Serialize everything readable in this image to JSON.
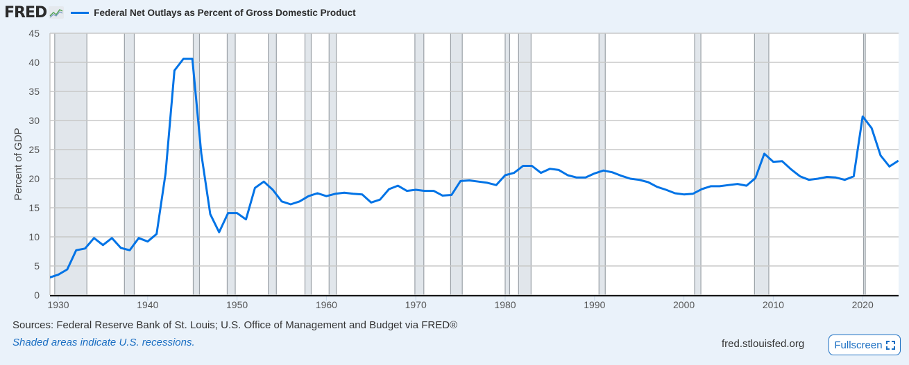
{
  "header": {
    "logo": "FRED",
    "legend_label": "Federal Net Outlays as Percent of Gross Domestic Product"
  },
  "footer": {
    "sources": "Sources: Federal Reserve Bank of St. Louis; U.S. Office of Management and Budget via FRED®",
    "note": "Shaded areas indicate U.S. recessions.",
    "site": "fred.stlouisfed.org",
    "fullscreen_label": "Fullscreen"
  },
  "colors": {
    "series": "#0073e6",
    "recession": "#e1e6eb",
    "background": "#eaf2fa"
  },
  "chart_data": {
    "type": "line",
    "title": "Federal Net Outlays as Percent of Gross Domestic Product",
    "xlabel": "",
    "ylabel": "Percent of GDP",
    "xlim": [
      1929,
      2024
    ],
    "ylim": [
      0,
      45
    ],
    "yticks": [
      "0",
      "5",
      "10",
      "15",
      "20",
      "25",
      "30",
      "35",
      "40",
      "45"
    ],
    "xticks": [
      "1930",
      "1940",
      "1950",
      "1960",
      "1970",
      "1980",
      "1990",
      "2000",
      "2010",
      "2020"
    ],
    "grid": true,
    "legend": "top-left",
    "recessions": [
      [
        1929.6,
        1933.2
      ],
      [
        1937.4,
        1938.5
      ],
      [
        1945.1,
        1945.8
      ],
      [
        1948.9,
        1949.8
      ],
      [
        1953.5,
        1954.4
      ],
      [
        1957.6,
        1958.3
      ],
      [
        1960.3,
        1961.1
      ],
      [
        1969.9,
        1970.9
      ],
      [
        1973.9,
        1975.2
      ],
      [
        1980.0,
        1980.5
      ],
      [
        1981.5,
        1982.9
      ],
      [
        1990.5,
        1991.2
      ],
      [
        2001.2,
        2001.9
      ],
      [
        2007.9,
        2009.5
      ],
      [
        2020.1,
        2020.3
      ]
    ],
    "series": [
      {
        "name": "Federal Net Outlays as Percent of Gross Domestic Product",
        "x": [
          1929,
          1930,
          1931,
          1932,
          1933,
          1934,
          1935,
          1936,
          1937,
          1938,
          1939,
          1940,
          1941,
          1942,
          1943,
          1944,
          1945,
          1946,
          1947,
          1948,
          1949,
          1950,
          1951,
          1952,
          1953,
          1954,
          1955,
          1956,
          1957,
          1958,
          1959,
          1960,
          1961,
          1962,
          1963,
          1964,
          1965,
          1966,
          1967,
          1968,
          1969,
          1970,
          1971,
          1972,
          1973,
          1974,
          1975,
          1976,
          1977,
          1978,
          1979,
          1980,
          1981,
          1982,
          1983,
          1984,
          1985,
          1986,
          1987,
          1988,
          1989,
          1990,
          1991,
          1992,
          1993,
          1994,
          1995,
          1996,
          1997,
          1998,
          1999,
          2000,
          2001,
          2002,
          2003,
          2004,
          2005,
          2006,
          2007,
          2008,
          2009,
          2010,
          2011,
          2012,
          2013,
          2014,
          2015,
          2016,
          2017,
          2018,
          2019,
          2020,
          2021,
          2022,
          2023,
          2024
        ],
        "values": [
          3.0,
          3.5,
          4.4,
          7.7,
          8.0,
          9.8,
          8.6,
          9.8,
          8.1,
          7.7,
          9.8,
          9.2,
          10.5,
          20.9,
          38.6,
          40.6,
          40.6,
          24.3,
          13.9,
          10.8,
          14.1,
          14.1,
          13.0,
          18.4,
          19.5,
          18.1,
          16.1,
          15.6,
          16.1,
          17.0,
          17.5,
          17.0,
          17.4,
          17.6,
          17.4,
          17.3,
          15.9,
          16.4,
          18.2,
          18.8,
          17.9,
          18.1,
          17.9,
          17.9,
          17.1,
          17.2,
          19.6,
          19.7,
          19.5,
          19.3,
          18.9,
          20.6,
          21.0,
          22.2,
          22.2,
          21.0,
          21.7,
          21.5,
          20.6,
          20.2,
          20.2,
          20.9,
          21.4,
          21.1,
          20.5,
          20.0,
          19.8,
          19.4,
          18.6,
          18.1,
          17.5,
          17.3,
          17.4,
          18.2,
          18.7,
          18.7,
          18.9,
          19.1,
          18.8,
          20.1,
          24.3,
          22.9,
          23.0,
          21.6,
          20.4,
          19.8,
          20.0,
          20.3,
          20.2,
          19.8,
          20.4,
          30.7,
          28.7,
          24.0,
          22.1,
          23.1
        ]
      }
    ]
  }
}
